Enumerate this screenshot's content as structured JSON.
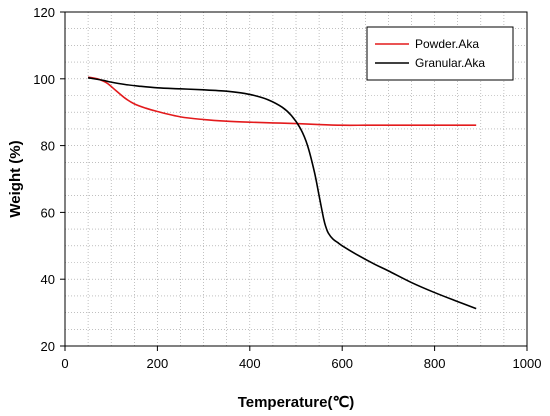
{
  "chart_data": {
    "type": "line",
    "title": "",
    "xlabel": "Temperature(℃)",
    "ylabel": "Weight (%)",
    "xlim": [
      0,
      1000
    ],
    "ylim": [
      20,
      120
    ],
    "xticks": [
      0,
      200,
      400,
      600,
      800,
      1000
    ],
    "yticks": [
      20,
      40,
      60,
      80,
      100,
      120
    ],
    "grid": "dotted, minor and major",
    "legend_position": "top-right",
    "series": [
      {
        "name": "Powder.Aka",
        "color": "#e31a1c",
        "x": [
          50,
          70,
          90,
          110,
          130,
          150,
          175,
          200,
          250,
          300,
          350,
          400,
          450,
          500,
          550,
          600,
          650,
          700,
          750,
          800,
          850,
          890
        ],
        "y": [
          100.5,
          100,
          98.8,
          96.5,
          94.2,
          92.5,
          91.2,
          90.2,
          88.6,
          87.8,
          87.3,
          87.0,
          86.8,
          86.6,
          86.3,
          86.1,
          86.1,
          86.1,
          86.1,
          86.1,
          86.1,
          86.1
        ]
      },
      {
        "name": "Granular.Aka",
        "color": "#000000",
        "x": [
          50,
          80,
          100,
          130,
          160,
          200,
          250,
          300,
          350,
          380,
          410,
          440,
          470,
          490,
          510,
          525,
          540,
          550,
          560,
          565,
          570,
          580,
          590,
          600,
          630,
          670,
          700,
          750,
          800,
          850,
          890
        ],
        "y": [
          100.3,
          99.6,
          99.0,
          98.3,
          97.8,
          97.3,
          97.0,
          96.7,
          96.3,
          95.8,
          95.0,
          93.7,
          91.5,
          89.0,
          85.0,
          80.0,
          72.0,
          65.0,
          58.0,
          55.5,
          53.8,
          52.0,
          51.0,
          50.0,
          47.5,
          44.5,
          42.5,
          39.0,
          36.0,
          33.3,
          31.2
        ]
      }
    ]
  }
}
